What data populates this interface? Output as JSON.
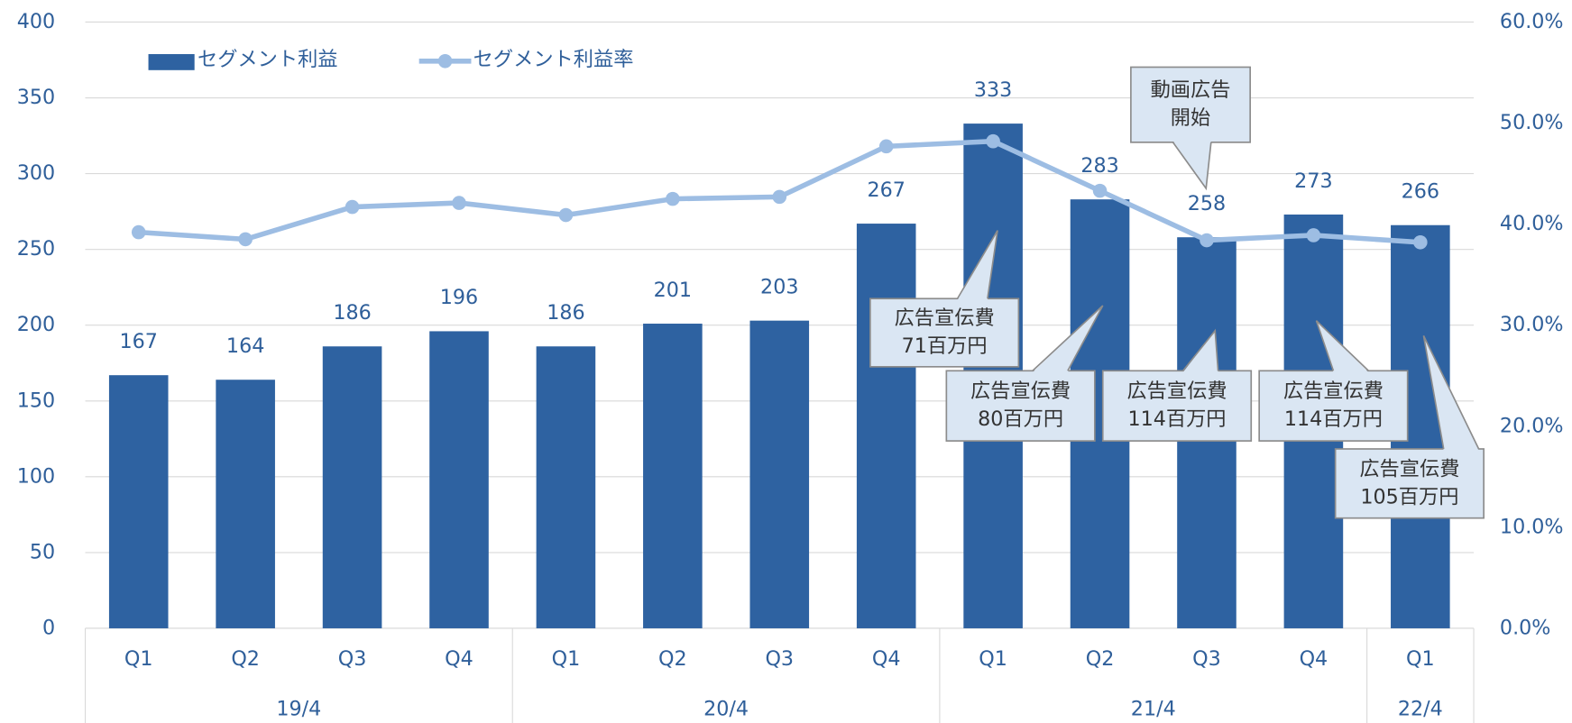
{
  "chart_data": {
    "type": "bar",
    "categories": [
      "Q1",
      "Q2",
      "Q3",
      "Q4",
      "Q1",
      "Q2",
      "Q3",
      "Q4",
      "Q1",
      "Q2",
      "Q3",
      "Q4",
      "Q1"
    ],
    "groups": [
      "19/4",
      "20/4",
      "21/4",
      "22/4"
    ],
    "series": [
      {
        "name": "セグメント利益",
        "type": "bar",
        "color": "#2e62a1",
        "values": [
          167,
          164,
          186,
          196,
          186,
          201,
          203,
          267,
          333,
          283,
          258,
          273,
          266
        ]
      },
      {
        "name": "セグメント利益率",
        "type": "line",
        "axis": "y2",
        "color": "#9dbde3",
        "values": [
          39.2,
          38.5,
          41.7,
          42.1,
          40.9,
          42.5,
          42.7,
          47.7,
          48.2,
          43.3,
          38.4,
          38.9,
          38.2
        ]
      }
    ],
    "ylim": [
      0,
      400
    ],
    "yticks": [
      0,
      50,
      100,
      150,
      200,
      250,
      300,
      350,
      400
    ],
    "y2lim": [
      0,
      60
    ],
    "y2ticks": [
      {
        "value": 0,
        "label": "0.0%"
      },
      {
        "value": 10,
        "label": "10.0%"
      },
      {
        "value": 20,
        "label": "20.0%"
      },
      {
        "value": 30,
        "label": "30.0%"
      },
      {
        "value": 40,
        "label": "40.0%"
      },
      {
        "value": 50,
        "label": "50.0%"
      },
      {
        "value": 60,
        "label": "60.0%"
      }
    ],
    "grid": true,
    "legend": "top-left",
    "annotations": [
      [
        "動画広告",
        "開始"
      ],
      [
        "広告宣伝費",
        "71百万円"
      ],
      [
        "広告宣伝費",
        "80百万円"
      ],
      [
        "広告宣伝費",
        "114百万円"
      ],
      [
        "広告宣伝費",
        "114百万円"
      ],
      [
        "広告宣伝費",
        "105百万円"
      ]
    ]
  }
}
